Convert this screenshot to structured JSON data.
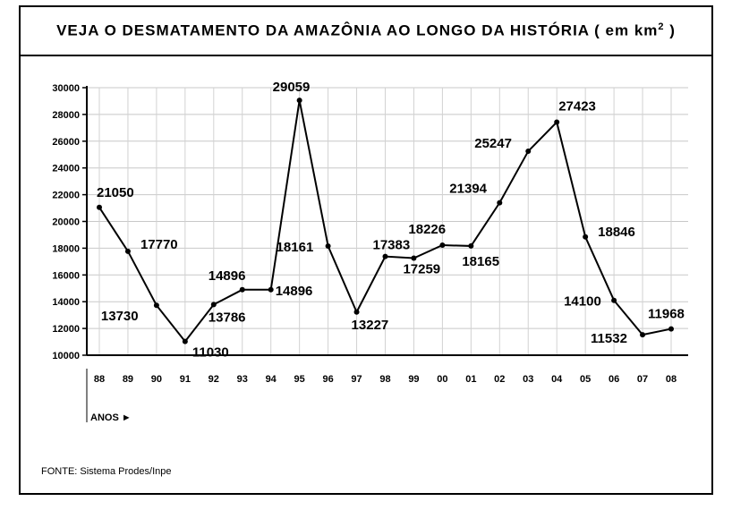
{
  "title_main": "VEJA O DESMATAMENTO DA AMAZÔNIA AO LONGO DA HISTÓRIA ( em km",
  "title_sup": "2",
  "title_close": " )",
  "axis_note": "ANOS ►",
  "source": "FONTE: Sistema Prodes/Inpe",
  "chart_data": {
    "type": "line",
    "title": "VEJA O DESMATAMENTO DA AMAZÔNIA AO LONGO DA HISTÓRIA ( em km2 )",
    "xlabel": "ANOS",
    "ylabel": "",
    "ylim": [
      10000,
      30000
    ],
    "yticks": [
      "10000",
      "12000",
      "14000",
      "16000",
      "18000",
      "20000",
      "22000",
      "24000",
      "26000",
      "28000",
      "30000"
    ],
    "grid": true,
    "categories": [
      "88",
      "89",
      "90",
      "91",
      "92",
      "93",
      "94",
      "95",
      "96",
      "97",
      "98",
      "99",
      "00",
      "01",
      "02",
      "03",
      "04",
      "05",
      "06",
      "07",
      "08"
    ],
    "values": [
      21050,
      17770,
      13730,
      11030,
      13786,
      14896,
      14896,
      29059,
      18161,
      13227,
      17383,
      17259,
      18226,
      18165,
      21394,
      25247,
      27423,
      18846,
      14100,
      11532,
      11968
    ]
  }
}
